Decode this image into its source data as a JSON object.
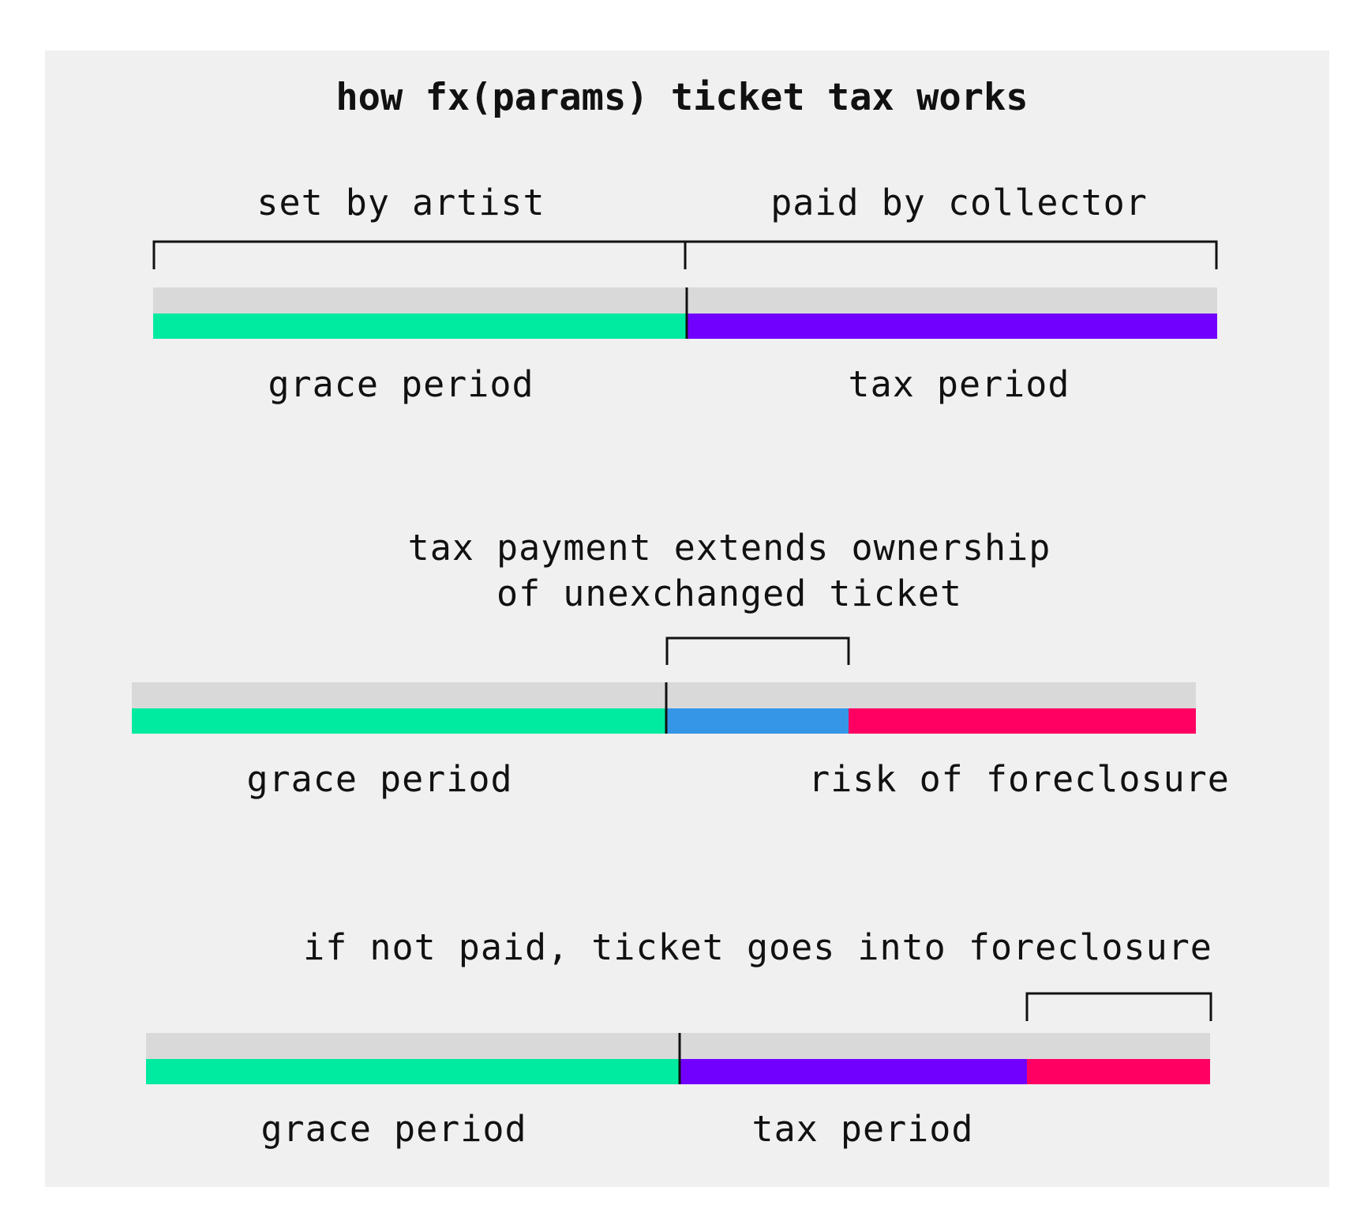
{
  "title": "how fx(params) ticket tax works",
  "colors": {
    "panel": "#f0f0f0",
    "track": "#d9d9d9",
    "grace": "#00eaa0",
    "tax": "#7200ff",
    "extension": "#3596e8",
    "foreclosure": "#ff0062",
    "ink": "#111111"
  },
  "rows": [
    {
      "labels_above": [
        "set by artist",
        "paid by collector"
      ],
      "segments": [
        {
          "name": "grace",
          "label": "grace period"
        },
        {
          "name": "tax",
          "label": "tax period"
        }
      ]
    },
    {
      "note": [
        "tax payment extends ownership",
        "of unexchanged ticket"
      ],
      "segments": [
        {
          "name": "grace",
          "label": "grace period"
        },
        {
          "name": "extension",
          "label": ""
        },
        {
          "name": "foreclosure",
          "label": "risk of foreclosure"
        }
      ]
    },
    {
      "note": [
        "if not paid, ticket goes into foreclosure"
      ],
      "segments": [
        {
          "name": "grace",
          "label": "grace period"
        },
        {
          "name": "tax",
          "label": "tax period"
        },
        {
          "name": "foreclosure",
          "label": ""
        }
      ]
    }
  ]
}
